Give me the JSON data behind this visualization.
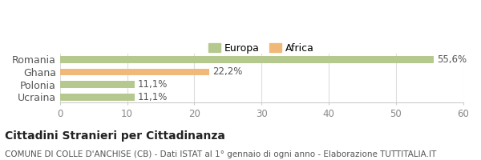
{
  "categories": [
    "Romania",
    "Ghana",
    "Polonia",
    "Ucraina"
  ],
  "values": [
    55.6,
    22.2,
    11.1,
    11.1
  ],
  "labels": [
    "55,6%",
    "22,2%",
    "11,1%",
    "11,1%"
  ],
  "bar_colors": [
    "#b5c98e",
    "#f0b97a",
    "#b5c98e",
    "#b5c98e"
  ],
  "legend": [
    {
      "label": "Europa",
      "color": "#b5c98e"
    },
    {
      "label": "Africa",
      "color": "#f0b97a"
    }
  ],
  "xlim": [
    0,
    60
  ],
  "xticks": [
    0,
    10,
    20,
    30,
    40,
    50,
    60
  ],
  "background_color": "#ffffff",
  "title_bold": "Cittadini Stranieri per Cittadinanza",
  "title_sub": "COMUNE DI COLLE D'ANCHISE (CB) - Dati ISTAT al 1° gennaio di ogni anno - Elaborazione TUTTITALIA.IT",
  "title_fontsize": 10,
  "sub_fontsize": 7.5,
  "label_fontsize": 8.5,
  "ytick_fontsize": 9,
  "xtick_fontsize": 8.5,
  "legend_fontsize": 9
}
